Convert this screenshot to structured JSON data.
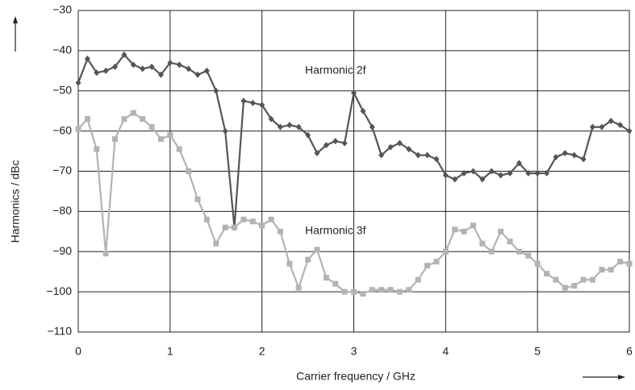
{
  "chart_data": {
    "type": "line",
    "xlabel": "Carrier frequency / GHz",
    "ylabel": "Harmonics / dBc",
    "annotations": [
      "Harmonic 2f",
      "Harmonic 3f"
    ],
    "x": [
      0,
      0.1,
      0.2,
      0.3,
      0.4,
      0.5,
      0.6,
      0.7,
      0.8,
      0.9,
      1,
      1.1,
      1.2,
      1.3,
      1.4,
      1.5,
      1.6,
      1.7,
      1.8,
      1.9,
      2,
      2.1,
      2.2,
      2.3,
      2.4,
      2.5,
      2.6,
      2.7,
      2.8,
      2.9,
      3,
      3.1,
      3.2,
      3.3,
      3.4,
      3.5,
      3.6,
      3.7,
      3.8,
      3.9,
      4,
      4.1,
      4.2,
      4.3,
      4.4,
      4.5,
      4.6,
      4.7,
      4.8,
      4.9,
      5,
      5.1,
      5.2,
      5.3,
      5.4,
      5.5,
      5.6,
      5.7,
      5.8,
      5.9,
      6
    ],
    "series": [
      {
        "name": "Harmonic 2f",
        "color": "#555555",
        "marker": "diamond",
        "values": [
          -48,
          -42,
          -45.5,
          -45,
          -44,
          -41,
          -43.5,
          -44.5,
          -44,
          -46,
          -43,
          -43.5,
          -44.5,
          -46,
          -45,
          -50,
          -60,
          -84,
          -52.5,
          -53,
          -53.5,
          -57,
          -59,
          -58.5,
          -59,
          -61,
          -65.5,
          -63.5,
          -62.5,
          -63,
          -50.5,
          -55,
          -59,
          -66,
          -64,
          -63,
          -64.5,
          -66,
          -66,
          -67,
          -71,
          -72,
          -70.5,
          -70,
          -72,
          -70,
          -71,
          -70.5,
          -68,
          -70.5,
          -70.5,
          -70.5,
          -66.5,
          -65.5,
          -66,
          -67,
          -59,
          -59,
          -57.5,
          -58.5,
          -60
        ]
      },
      {
        "name": "Harmonic 3f",
        "color": "#b3b3b3",
        "marker": "square",
        "values": [
          -59.5,
          -57,
          -64.5,
          -90.5,
          -62,
          -57,
          -55.5,
          -57,
          -59,
          -62,
          -61,
          -64.5,
          -70,
          -77,
          -82,
          -88,
          -84,
          -84,
          -82,
          -82.5,
          -83.5,
          -82,
          -85,
          -93,
          -99,
          -92,
          -89.5,
          -96.5,
          -98,
          -100,
          -100,
          -100.5,
          -99.5,
          -99.5,
          -99.5,
          -100,
          -99.5,
          -97,
          -93.5,
          -92.5,
          -90,
          -84.5,
          -85,
          -83.5,
          -88,
          -90,
          -85,
          -87.5,
          -90,
          -91,
          -93,
          -95.5,
          -97,
          -99,
          -98.5,
          -97,
          -97,
          -94.5,
          -94.5,
          -92.5,
          -93
        ]
      }
    ],
    "xlim": [
      0,
      6
    ],
    "xticks": [
      0,
      1,
      2,
      3,
      4,
      5,
      6
    ],
    "ylim": [
      -110,
      -30
    ],
    "yticks": [
      {
        "value": -110,
        "label": "−110"
      },
      {
        "value": -100,
        "label": "−100"
      },
      {
        "value": -90,
        "label": "−90"
      },
      {
        "value": -80,
        "label": "−80"
      },
      {
        "value": -70,
        "label": "−70"
      },
      {
        "value": -60,
        "label": "−60"
      },
      {
        "value": -50,
        "label": "−50"
      },
      {
        "value": -40,
        "label": "−40"
      },
      {
        "value": -30,
        "label": "−30"
      }
    ],
    "grid": true
  }
}
